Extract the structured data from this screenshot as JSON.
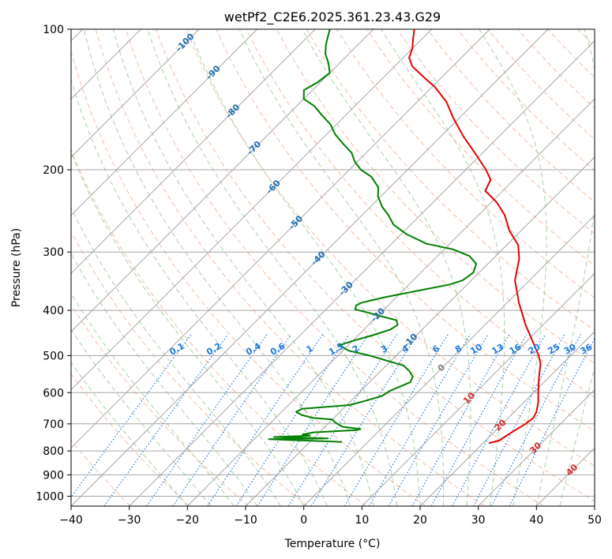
{
  "chart_data": {
    "type": "line",
    "title": "wetPf2_C2E6.2025.361.23.43.G29",
    "xlabel": "Temperature (°C)",
    "ylabel": "Pressure (hPa)",
    "xlim": [
      -40,
      50
    ],
    "ylim_pressure": [
      1050,
      100
    ],
    "x_ticks": [
      -40,
      -30,
      -20,
      -10,
      0,
      10,
      20,
      30,
      40,
      50
    ],
    "y_ticks": [
      1000,
      900,
      800,
      700,
      600,
      500,
      400,
      300,
      200,
      100
    ],
    "grid": true,
    "colors": {
      "temperature": "#e60000",
      "dewpoint": "#008000",
      "isotherm": "#a6a6a6",
      "dry_adiabat": "#f4a582",
      "moist_adiabat": "#8fc88f",
      "mixing_ratio": "#1e78dc",
      "isotherm_label": "#1f6eb0",
      "dry_adiabat_label": "#d62728",
      "freezing_label": "#808080"
    },
    "series": [
      {
        "name": "Temperature",
        "points": [
          [
            21.0,
            770
          ],
          [
            22.3,
            760
          ],
          [
            22.8,
            740
          ],
          [
            23.5,
            715
          ],
          [
            24.0,
            700
          ],
          [
            24.3,
            680
          ],
          [
            23.8,
            660
          ],
          [
            22.5,
            630
          ],
          [
            20.8,
            600
          ],
          [
            18.5,
            560
          ],
          [
            16.2,
            520
          ],
          [
            14.5,
            500
          ],
          [
            12.5,
            480
          ],
          [
            7.0,
            430
          ],
          [
            2.0,
            385
          ],
          [
            -2.5,
            345
          ],
          [
            -5.5,
            310
          ],
          [
            -8.0,
            290
          ],
          [
            -12.0,
            270
          ],
          [
            -15.5,
            250
          ],
          [
            -19.0,
            235
          ],
          [
            -22.0,
            225
          ],
          [
            -23.0,
            222
          ],
          [
            -24.0,
            210
          ],
          [
            -26.5,
            200
          ],
          [
            -31.0,
            185
          ],
          [
            -36.0,
            170
          ],
          [
            -41.0,
            155
          ],
          [
            -45.0,
            143
          ],
          [
            -49.5,
            133
          ],
          [
            -53.5,
            126
          ],
          [
            -57.0,
            120
          ],
          [
            -59.0,
            115
          ],
          [
            -60.0,
            110
          ],
          [
            -61.5,
            105
          ],
          [
            -63.0,
            100
          ]
        ]
      },
      {
        "name": "Dewpoint",
        "points": [
          [
            -4.5,
            765
          ],
          [
            -17.5,
            755
          ],
          [
            -7.5,
            752
          ],
          [
            -17.0,
            747
          ],
          [
            -11.0,
            742
          ],
          [
            -12.5,
            738
          ],
          [
            -11.0,
            730
          ],
          [
            -4.0,
            722
          ],
          [
            -3.5,
            718
          ],
          [
            -7.0,
            710
          ],
          [
            -9.0,
            695
          ],
          [
            -10.0,
            685
          ],
          [
            -13.5,
            680
          ],
          [
            -16.0,
            670
          ],
          [
            -17.5,
            660
          ],
          [
            -17.0,
            650
          ],
          [
            -9.5,
            638
          ],
          [
            -7.5,
            625
          ],
          [
            -5.5,
            610
          ],
          [
            -5.0,
            595
          ],
          [
            -3.0,
            570
          ],
          [
            -3.5,
            555
          ],
          [
            -5.0,
            540
          ],
          [
            -7.0,
            525
          ],
          [
            -10.0,
            515
          ],
          [
            -14.5,
            500
          ],
          [
            -19.0,
            488
          ],
          [
            -21.5,
            475
          ],
          [
            -20.0,
            465
          ],
          [
            -17.5,
            452
          ],
          [
            -15.5,
            440
          ],
          [
            -15.0,
            430
          ],
          [
            -16.0,
            420
          ],
          [
            -18.0,
            415
          ],
          [
            -22.0,
            405
          ],
          [
            -25.0,
            398
          ],
          [
            -25.5,
            390
          ],
          [
            -25.0,
            385
          ],
          [
            -22.0,
            375
          ],
          [
            -17.0,
            362
          ],
          [
            -13.0,
            352
          ],
          [
            -11.5,
            345
          ],
          [
            -11.0,
            332
          ],
          [
            -12.0,
            318
          ],
          [
            -14.5,
            306
          ],
          [
            -18.5,
            296
          ],
          [
            -24.0,
            288
          ],
          [
            -29.0,
            275
          ],
          [
            -33.0,
            262
          ],
          [
            -35.5,
            250
          ],
          [
            -38.0,
            240
          ],
          [
            -40.5,
            228
          ],
          [
            -42.0,
            218
          ],
          [
            -45.0,
            207
          ],
          [
            -48.0,
            200
          ],
          [
            -50.5,
            192
          ],
          [
            -52.5,
            184
          ],
          [
            -55.5,
            176
          ],
          [
            -58.5,
            168
          ],
          [
            -61.0,
            160
          ],
          [
            -64.0,
            153
          ],
          [
            -67.0,
            146
          ],
          [
            -70.0,
            141
          ],
          [
            -71.5,
            135
          ],
          [
            -70.5,
            130
          ],
          [
            -70.0,
            124
          ],
          [
            -72.0,
            118
          ],
          [
            -74.0,
            113
          ],
          [
            -75.5,
            108
          ],
          [
            -76.5,
            104
          ],
          [
            -77.5,
            100
          ]
        ]
      }
    ],
    "isotherm_labels": [
      {
        "temp": -100,
        "pressure": 107,
        "text": "-100"
      },
      {
        "temp": -90,
        "pressure": 124,
        "text": "-90"
      },
      {
        "temp": -80,
        "pressure": 150,
        "text": "-80"
      },
      {
        "temp": -70,
        "pressure": 180,
        "text": "-70"
      },
      {
        "temp": -60,
        "pressure": 218,
        "text": "-60"
      },
      {
        "temp": -50,
        "pressure": 260,
        "text": "-50"
      },
      {
        "temp": -40,
        "pressure": 310,
        "text": "-40"
      },
      {
        "temp": -30,
        "pressure": 360,
        "text": "-30"
      },
      {
        "temp": -20,
        "pressure": 410,
        "text": "-20"
      },
      {
        "temp": -10,
        "pressure": 465,
        "text": "-10"
      },
      {
        "temp": 0,
        "pressure": 532,
        "text": "0"
      },
      {
        "temp": 10,
        "pressure": 618,
        "text": "10"
      },
      {
        "temp": 20,
        "pressure": 706,
        "text": "20"
      },
      {
        "temp": 30,
        "pressure": 790,
        "text": "30"
      },
      {
        "temp": 40,
        "pressure": 880,
        "text": "40"
      }
    ],
    "mixing_ratio_labels": [
      "0.1",
      "0.2",
      "0.4",
      "0.6",
      "1",
      "1.5",
      "2",
      "3",
      "4",
      "6",
      "8",
      "10",
      "13",
      "16",
      "20",
      "25",
      "30",
      "36"
    ],
    "mixing_ratio_label_pressure": 490
  }
}
